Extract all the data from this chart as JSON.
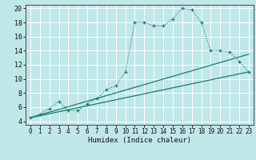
{
  "xlabel": "Humidex (Indice chaleur)",
  "bg_color": "#c0e8e8",
  "grid_color": "#ffffff",
  "line_color": "#1a7a6e",
  "xlim": [
    -0.5,
    23.5
  ],
  "ylim": [
    3.5,
    20.5
  ],
  "xticks": [
    0,
    1,
    2,
    3,
    4,
    5,
    6,
    7,
    8,
    9,
    10,
    11,
    12,
    13,
    14,
    15,
    16,
    17,
    18,
    19,
    20,
    21,
    22,
    23
  ],
  "yticks": [
    4,
    6,
    8,
    10,
    12,
    14,
    16,
    18,
    20
  ],
  "line1_x": [
    0,
    1,
    2,
    3,
    4,
    5,
    6,
    7,
    8,
    9,
    10,
    11,
    12,
    13,
    14,
    15,
    16,
    17,
    18,
    19,
    20,
    21,
    22,
    23
  ],
  "line1_y": [
    4.5,
    5.0,
    5.8,
    6.8,
    5.5,
    5.5,
    6.5,
    7.2,
    8.5,
    9.0,
    11.0,
    18.0,
    18.0,
    17.5,
    17.5,
    18.5,
    20.0,
    19.8,
    18.0,
    14.0,
    14.0,
    13.8,
    12.5,
    11.0
  ],
  "line2_x": [
    0,
    23
  ],
  "line2_y": [
    4.5,
    11.0
  ],
  "line3_x": [
    0,
    23
  ],
  "line3_y": [
    4.5,
    13.5
  ],
  "xlabel_fontsize": 6.5,
  "tick_fontsize": 5.5
}
